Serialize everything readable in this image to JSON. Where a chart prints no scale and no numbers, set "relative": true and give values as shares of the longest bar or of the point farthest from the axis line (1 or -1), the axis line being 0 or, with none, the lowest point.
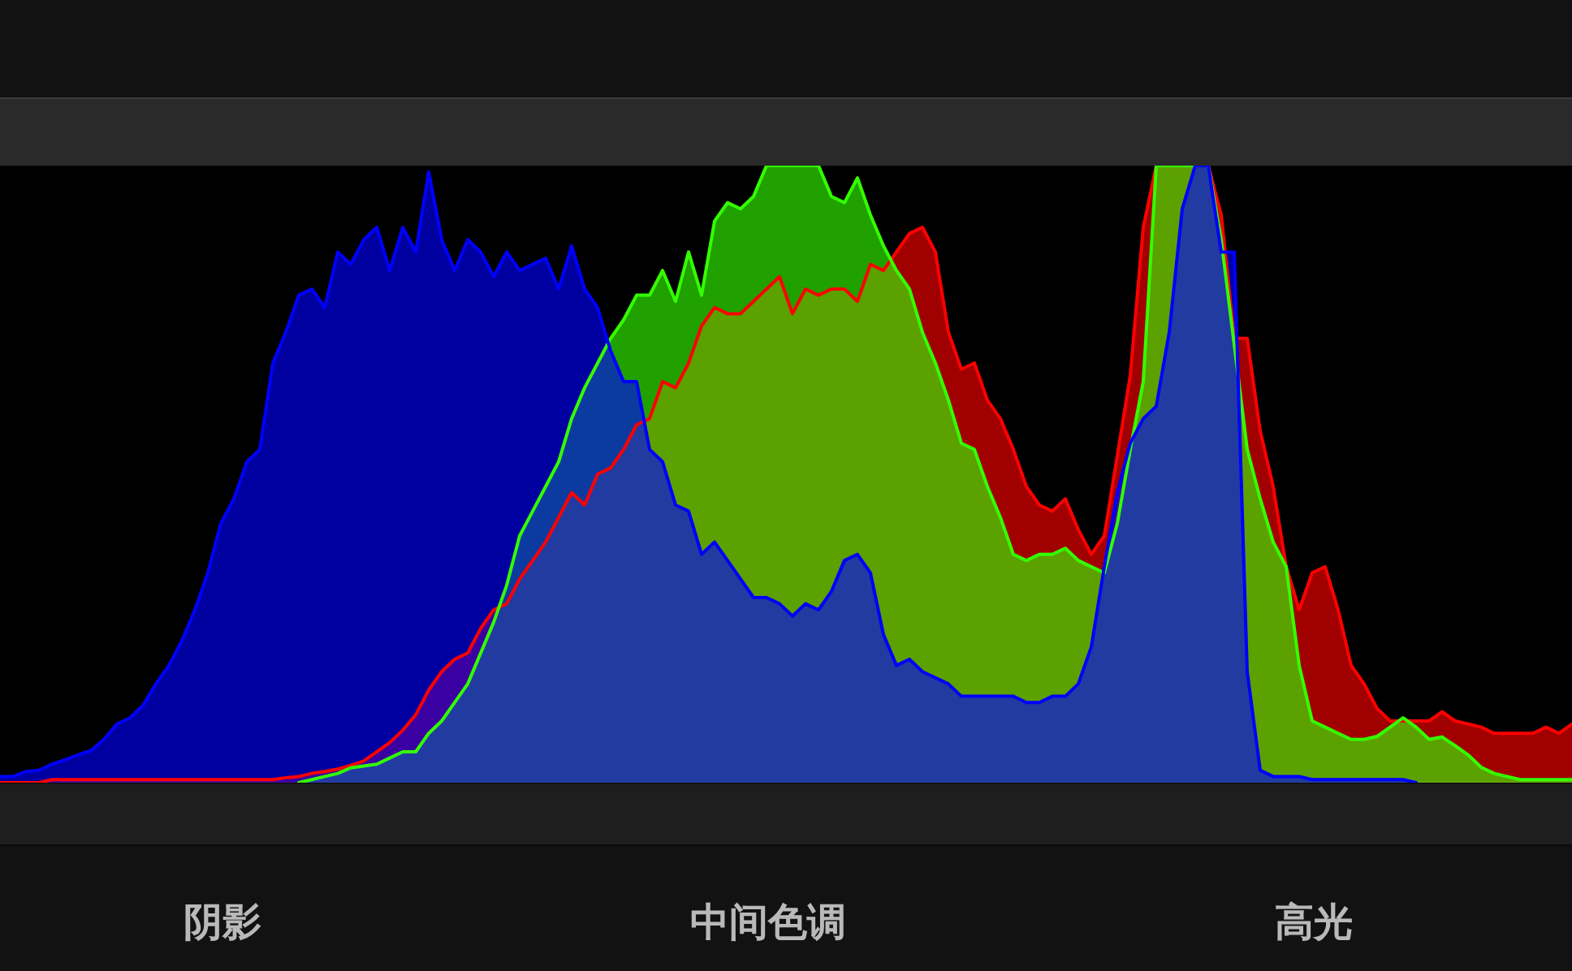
{
  "chart_data": {
    "type": "area",
    "relative": true,
    "categories": [
      null,
      null,
      null,
      null,
      null,
      null,
      null,
      null,
      null,
      null,
      null,
      null,
      null,
      null,
      null,
      null,
      null,
      null,
      null,
      null,
      null,
      null,
      null,
      null,
      null,
      null,
      null,
      null,
      null,
      null,
      null,
      null,
      null,
      null,
      null,
      null,
      null,
      null,
      null,
      null,
      null,
      null,
      null,
      null,
      null,
      null,
      null,
      null,
      null,
      null,
      null,
      null,
      null,
      null,
      null,
      null,
      null,
      null,
      null,
      null,
      null,
      null,
      null,
      null,
      null,
      null,
      null,
      null,
      null,
      null,
      null,
      null,
      null,
      null,
      null,
      null,
      null,
      null,
      null,
      null,
      null,
      null,
      null,
      null,
      null,
      null,
      null,
      null,
      null,
      null,
      null,
      null,
      null,
      null,
      null,
      null,
      null,
      null,
      null,
      null,
      null,
      null,
      null,
      null,
      null,
      null,
      null,
      null,
      null,
      null,
      null,
      null,
      null,
      null,
      null,
      null,
      null,
      null,
      null,
      null,
      null,
      null
    ],
    "series": [
      {
        "color": "#ff0000",
        "values": [
          0,
          0,
          0,
          0,
          0.005,
          0.005,
          0.005,
          0.005,
          0.005,
          0.005,
          0.005,
          0.005,
          0.005,
          0.005,
          0.005,
          0.005,
          0.005,
          0.005,
          0.005,
          0.005,
          0.005,
          0.005,
          0.008,
          0.01,
          0.015,
          0.018,
          0.022,
          0.028,
          0.035,
          0.05,
          0.065,
          0.085,
          0.11,
          0.15,
          0.18,
          0.2,
          0.21,
          0.25,
          0.28,
          0.29,
          0.33,
          0.36,
          0.39,
          0.43,
          0.47,
          0.45,
          0.5,
          0.51,
          0.54,
          0.58,
          0.59,
          0.65,
          0.64,
          0.68,
          0.74,
          0.77,
          0.76,
          0.76,
          0.78,
          0.8,
          0.82,
          0.76,
          0.8,
          0.79,
          0.8,
          0.8,
          0.78,
          0.84,
          0.83,
          0.86,
          0.89,
          0.9,
          0.86,
          0.73,
          0.67,
          0.68,
          0.62,
          0.59,
          0.54,
          0.48,
          0.45,
          0.44,
          0.46,
          0.41,
          0.37,
          0.4,
          0.53,
          0.66,
          0.9,
          1,
          1,
          1,
          1,
          1,
          0.92,
          0.72,
          0.72,
          0.57,
          0.48,
          0.35,
          0.28,
          0.34,
          0.35,
          0.28,
          0.19,
          0.16,
          0.12,
          0.1,
          0.1,
          0.1,
          0.1,
          0.115,
          0.1,
          0.095,
          0.09,
          0.08,
          0.08,
          0.08,
          0.08,
          0.09,
          0.08,
          0.095
        ]
      },
      {
        "color": "#33ff00",
        "values": [
          null,
          null,
          null,
          null,
          null,
          null,
          null,
          null,
          null,
          null,
          null,
          null,
          null,
          null,
          null,
          null,
          null,
          null,
          null,
          null,
          null,
          null,
          null,
          0,
          0.005,
          0.01,
          0.015,
          0.024,
          0.027,
          0.03,
          0.04,
          0.05,
          0.05,
          0.08,
          0.1,
          0.13,
          0.16,
          0.21,
          0.26,
          0.32,
          0.4,
          0.44,
          0.48,
          0.52,
          0.59,
          0.64,
          0.68,
          0.72,
          0.75,
          0.79,
          0.79,
          0.83,
          0.78,
          0.86,
          0.79,
          0.91,
          0.94,
          0.93,
          0.95,
          1,
          1,
          1,
          1,
          1,
          0.95,
          0.94,
          0.98,
          0.92,
          0.87,
          0.83,
          0.8,
          0.73,
          0.68,
          0.62,
          0.55,
          0.54,
          0.48,
          0.43,
          0.37,
          0.36,
          0.37,
          0.37,
          0.38,
          0.36,
          0.35,
          0.34,
          0.42,
          0.54,
          0.65,
          1,
          1,
          1,
          1,
          1,
          0.88,
          0.71,
          0.54,
          0.46,
          0.39,
          0.35,
          0.19,
          0.1,
          0.09,
          0.08,
          0.07,
          0.07,
          0.075,
          0.09,
          0.105,
          0.09,
          0.07,
          0.074,
          0.06,
          0.045,
          0.025,
          0.015,
          0.01,
          0.005,
          0.005,
          0.005,
          0.005,
          0.005
        ]
      },
      {
        "color": "#0000ff",
        "values": [
          0.01,
          0.01,
          0.018,
          0.02,
          0.03,
          0.037,
          0.045,
          0.052,
          0.07,
          0.095,
          0.105,
          0.125,
          0.16,
          0.19,
          0.23,
          0.28,
          0.34,
          0.42,
          0.46,
          0.52,
          0.54,
          0.68,
          0.73,
          0.79,
          0.8,
          0.77,
          0.86,
          0.84,
          0.88,
          0.9,
          0.83,
          0.9,
          0.86,
          0.99,
          0.88,
          0.83,
          0.88,
          0.86,
          0.82,
          0.86,
          0.83,
          0.84,
          0.85,
          0.8,
          0.87,
          0.8,
          0.77,
          0.7,
          0.65,
          0.65,
          0.54,
          0.52,
          0.45,
          0.44,
          0.37,
          0.39,
          0.36,
          0.33,
          0.3,
          0.3,
          0.29,
          0.27,
          0.29,
          0.28,
          0.31,
          0.36,
          0.37,
          0.34,
          0.24,
          0.19,
          0.2,
          0.18,
          0.17,
          0.16,
          0.14,
          0.14,
          0.14,
          0.14,
          0.14,
          0.13,
          0.13,
          0.14,
          0.14,
          0.16,
          0.22,
          0.35,
          0.47,
          0.55,
          0.59,
          0.61,
          0.73,
          0.93,
          1,
          1,
          0.86,
          0.86,
          0.18,
          0.02,
          0.01,
          0.01,
          0.01,
          0.005,
          0.005,
          0.005,
          0.005,
          0.005,
          0.005,
          0.005,
          0.005,
          0,
          null,
          null,
          null,
          null,
          null,
          null,
          null,
          null,
          null,
          null,
          null,
          null
        ]
      }
    ],
    "annotations": [
      "阴影",
      "中间色调",
      "高光"
    ]
  }
}
